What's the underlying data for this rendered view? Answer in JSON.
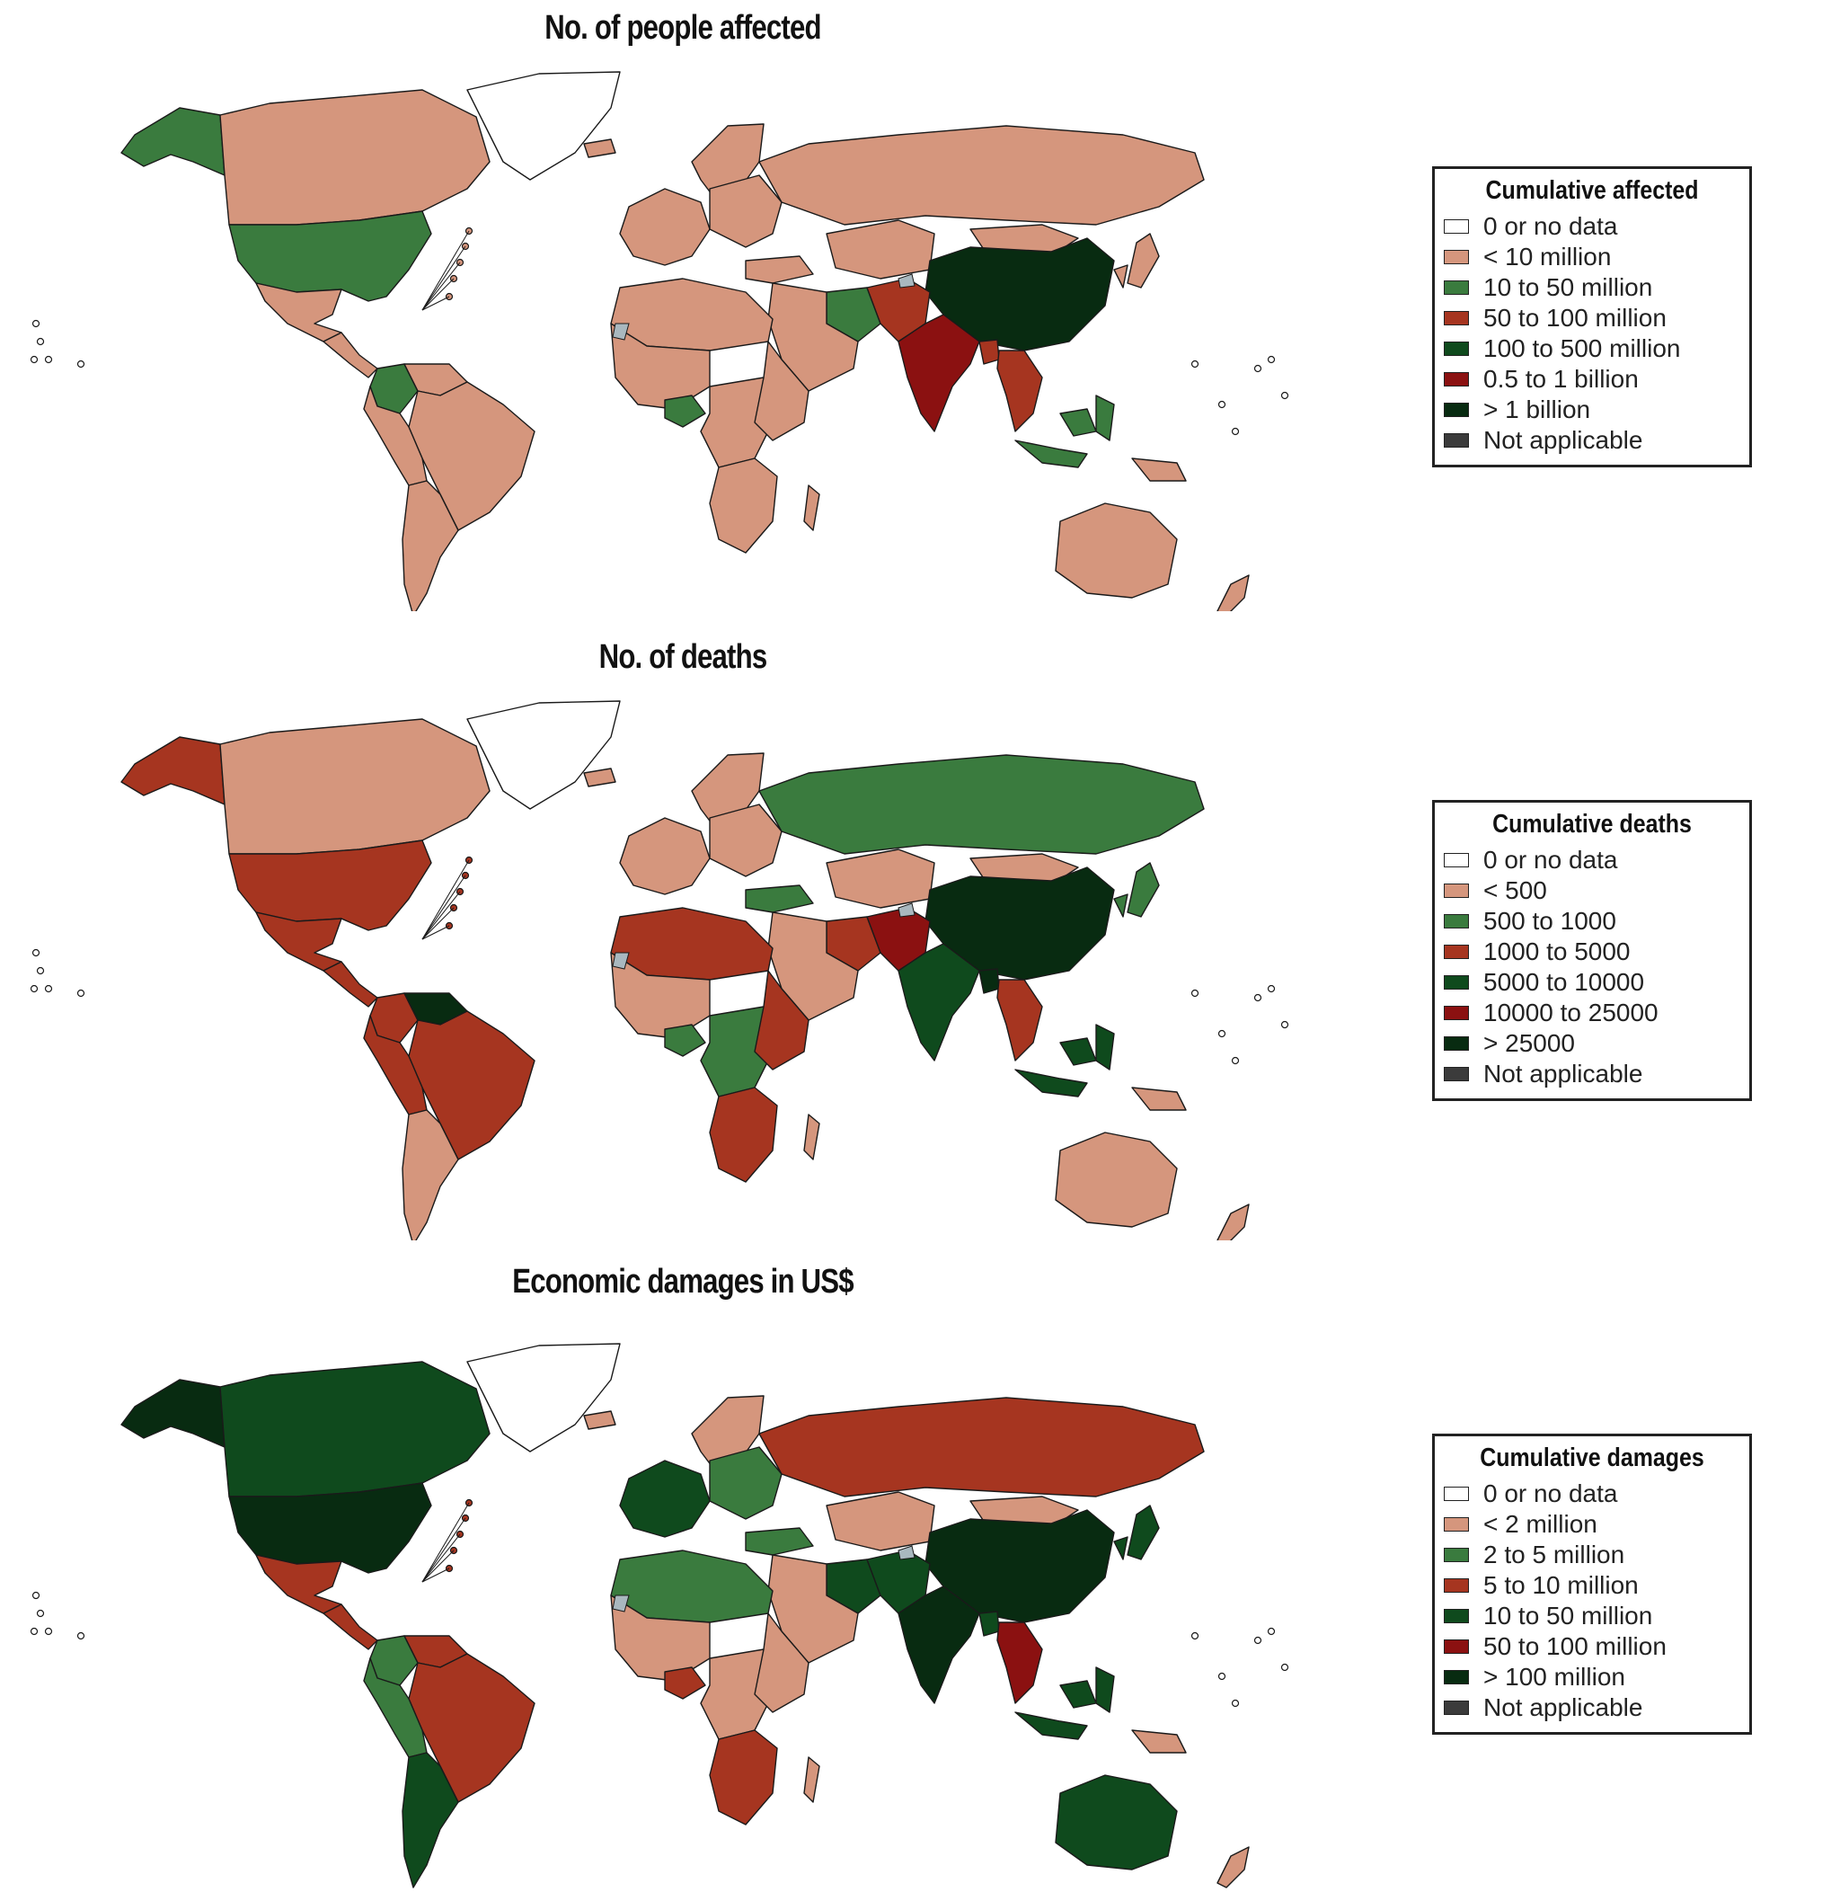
{
  "colors": {
    "none": "#ffffff",
    "c1": "#d5967d",
    "c2": "#3a7b3e",
    "c3": "#a63520",
    "c4": "#0f4a1d",
    "c5": "#8b1111",
    "c6": "#082b11",
    "na": "#3b3b3b",
    "lake": "#a9b8bf",
    "border": "#1a1a1a"
  },
  "panels": [
    {
      "title": "No. of people affected",
      "legend": {
        "title": "Cumulative affected",
        "items": [
          {
            "label": "0 or no data",
            "color": "#ffffff"
          },
          {
            "label": "< 10 million",
            "color": "#d5967d"
          },
          {
            "label": "10 to 50 million",
            "color": "#3a7b3e"
          },
          {
            "label": "50 to 100 million",
            "color": "#a63520"
          },
          {
            "label": "100 to 500 million",
            "color": "#0f4a1d"
          },
          {
            "label": "0.5 to 1 billion",
            "color": "#8b1111"
          },
          {
            "label": "> 1 billion",
            "color": "#082b11"
          },
          {
            "label": "Not applicable",
            "color": "#3b3b3b"
          }
        ]
      },
      "regions": {
        "alaska": "c2",
        "canada": "c1",
        "usa": "c2",
        "mexico": "c1",
        "central_america": "c1",
        "colombia": "c2",
        "venezuela": "c1",
        "brazil": "c1",
        "andes": "c1",
        "southern_cone": "c1",
        "greenland": "none",
        "iceland": "c1",
        "scandinavia": "c1",
        "western_europe": "c1",
        "eastern_europe": "c1",
        "russia": "c1",
        "kazakhstan": "c1",
        "mongolia": "c1",
        "china": "c6",
        "korea_japan": "c1",
        "turkey": "c1",
        "iran": "c2",
        "middle_east": "c1",
        "pakistan_afg": "c3",
        "india": "c5",
        "bangladesh": "c3",
        "southeast_asia": "c3",
        "maritime_asia": "c2",
        "north_africa": "c1",
        "west_africa": "c1",
        "nigeria": "c2",
        "central_africa": "c1",
        "east_africa": "c1",
        "southern_africa": "c1",
        "madagascar": "c1",
        "australia": "c1",
        "new_zealand": "c1",
        "png": "c1"
      }
    },
    {
      "title": "No. of deaths",
      "legend": {
        "title": "Cumulative deaths",
        "items": [
          {
            "label": "0 or no data",
            "color": "#ffffff"
          },
          {
            "label": "< 500",
            "color": "#d5967d"
          },
          {
            "label": "500 to 1000",
            "color": "#3a7b3e"
          },
          {
            "label": "1000 to 5000",
            "color": "#a63520"
          },
          {
            "label": "5000 to 10000",
            "color": "#0f4a1d"
          },
          {
            "label": "10000 to 25000",
            "color": "#8b1111"
          },
          {
            "label": "> 25000",
            "color": "#082b11"
          },
          {
            "label": "Not applicable",
            "color": "#3b3b3b"
          }
        ]
      },
      "regions": {
        "alaska": "c3",
        "canada": "c1",
        "usa": "c3",
        "mexico": "c3",
        "central_america": "c3",
        "colombia": "c3",
        "venezuela": "c6",
        "brazil": "c3",
        "andes": "c3",
        "southern_cone": "c1",
        "greenland": "none",
        "iceland": "c1",
        "scandinavia": "c1",
        "western_europe": "c1",
        "eastern_europe": "c1",
        "russia": "c2",
        "kazakhstan": "c1",
        "mongolia": "c1",
        "china": "c6",
        "korea_japan": "c2",
        "turkey": "c2",
        "iran": "c3",
        "middle_east": "c1",
        "pakistan_afg": "c5",
        "india": "c4",
        "bangladesh": "c6",
        "southeast_asia": "c3",
        "maritime_asia": "c4",
        "north_africa": "c3",
        "west_africa": "c1",
        "nigeria": "c2",
        "central_africa": "c2",
        "east_africa": "c3",
        "southern_africa": "c3",
        "madagascar": "c1",
        "australia": "c1",
        "new_zealand": "c1",
        "png": "c1"
      }
    },
    {
      "title": "Economic damages in US$",
      "legend": {
        "title": "Cumulative damages",
        "items": [
          {
            "label": "0 or no data",
            "color": "#ffffff"
          },
          {
            "label": "< 2 million",
            "color": "#d5967d"
          },
          {
            "label": "2 to 5 million",
            "color": "#3a7b3e"
          },
          {
            "label": "5 to 10 million",
            "color": "#a63520"
          },
          {
            "label": "10 to 50 million",
            "color": "#0f4a1d"
          },
          {
            "label": "50 to 100 million",
            "color": "#8b1111"
          },
          {
            "label": "> 100 million",
            "color": "#082b11"
          },
          {
            "label": "Not applicable",
            "color": "#3b3b3b"
          }
        ]
      },
      "regions": {
        "alaska": "c6",
        "canada": "c4",
        "usa": "c6",
        "mexico": "c3",
        "central_america": "c3",
        "colombia": "c2",
        "venezuela": "c3",
        "brazil": "c3",
        "andes": "c2",
        "southern_cone": "c4",
        "greenland": "none",
        "iceland": "c1",
        "scandinavia": "c1",
        "western_europe": "c4",
        "eastern_europe": "c2",
        "russia": "c3",
        "kazakhstan": "c1",
        "mongolia": "c1",
        "china": "c6",
        "korea_japan": "c4",
        "turkey": "c2",
        "iran": "c4",
        "middle_east": "c1",
        "pakistan_afg": "c4",
        "india": "c6",
        "bangladesh": "c4",
        "southeast_asia": "c5",
        "maritime_asia": "c4",
        "north_africa": "c2",
        "west_africa": "c1",
        "nigeria": "c3",
        "central_africa": "c1",
        "east_africa": "c1",
        "southern_africa": "c3",
        "madagascar": "c1",
        "australia": "c4",
        "new_zealand": "c1",
        "png": "c1"
      }
    }
  ]
}
